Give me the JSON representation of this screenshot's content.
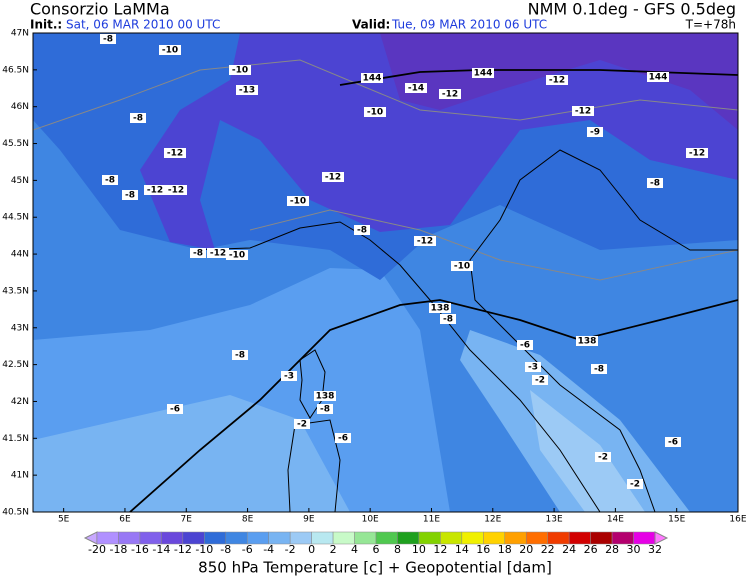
{
  "header": {
    "title": "Consorzio LaMMa",
    "model": "NMM 0.1deg - GFS 0.5deg",
    "init_label": "Init.:",
    "init_value": "Sat, 06 MAR 2010  00 UTC",
    "valid_label": "Valid:",
    "valid_value": "Tue, 09 MAR 2010  06 UTC",
    "step": "T=+78h"
  },
  "map": {
    "lat_labels": [
      "47N",
      "46.5N",
      "46N",
      "45.5N",
      "45N",
      "44.5N",
      "44N",
      "43.5N",
      "43N",
      "42.5N",
      "42N",
      "41.5N",
      "41N",
      "40.5N"
    ],
    "lon_labels": [
      "5E",
      "6E",
      "7E",
      "8E",
      "9E",
      "10E",
      "11E",
      "12E",
      "13E",
      "14E",
      "15E",
      "16E"
    ],
    "contour_labels": [
      "-8",
      "-10",
      "-10",
      "-13",
      "-8",
      "-12",
      "-8",
      "-8",
      "-12",
      "-12",
      "-8",
      "-12",
      "-10",
      "-12",
      "-10",
      "-8",
      "-12",
      "-10",
      "144",
      "144",
      "144",
      "-14",
      "-12",
      "-12",
      "-10",
      "-12",
      "-9",
      "-12",
      "-8",
      "138",
      "-8",
      "138",
      "-6",
      "-3",
      "-2",
      "-8",
      "-8",
      "-6",
      "-3",
      "138",
      "-8",
      "-2",
      "-6",
      "-6",
      "-2",
      "-2"
    ]
  },
  "colorbar": {
    "labels": [
      "-20",
      "-18",
      "-16",
      "-14",
      "-12",
      "-10",
      "-8",
      "-6",
      "-4",
      "-2",
      "0",
      "2",
      "4",
      "6",
      "8",
      "10",
      "12",
      "14",
      "16",
      "18",
      "20",
      "22",
      "24",
      "26",
      "28",
      "30",
      "32"
    ],
    "colors": [
      "#c8a8ff",
      "#b090ff",
      "#9878f5",
      "#8060eb",
      "#6a48dc",
      "#4c44d2",
      "#2f6cd8",
      "#3f86e2",
      "#5a9ef0",
      "#78b4f2",
      "#9ccaf5",
      "#b8e8f0",
      "#c8fac8",
      "#96e696",
      "#50c850",
      "#1ea01e",
      "#82d200",
      "#c8e600",
      "#f0f000",
      "#ffd200",
      "#ffa000",
      "#ff6e00",
      "#f03c00",
      "#d20000",
      "#aa0000",
      "#b4006e",
      "#e600e6",
      "#ff78ff"
    ]
  },
  "caption": "850 hPa Temperature [c] + Geopotential [dam]"
}
